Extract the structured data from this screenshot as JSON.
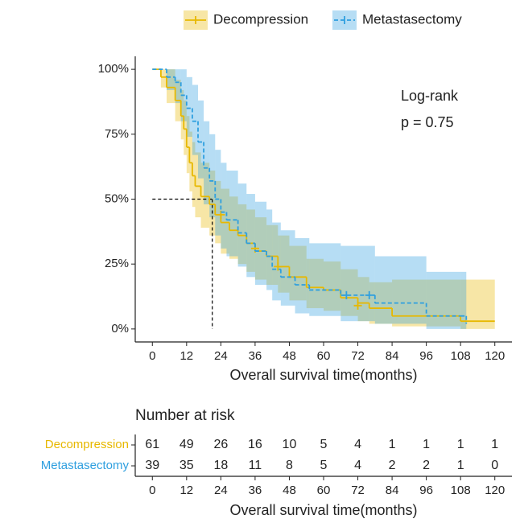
{
  "chart_data": {
    "type": "survival",
    "legend_position": "top",
    "xlabel": "Overall survival time(months)",
    "xlim": [
      -6,
      126
    ],
    "xticks": [
      0,
      12,
      24,
      36,
      48,
      60,
      72,
      84,
      96,
      108,
      120
    ],
    "ylim": [
      -5,
      105
    ],
    "yticks": [
      {
        "value": 0,
        "label": "0%"
      },
      {
        "value": 25,
        "label": "25%"
      },
      {
        "value": 50,
        "label": "50%"
      },
      {
        "value": 75,
        "label": "75%"
      },
      {
        "value": 100,
        "label": "100%"
      }
    ],
    "annotation": [
      "Log-rank",
      "p = 0.75"
    ],
    "median": {
      "x": 21,
      "y": 50
    },
    "series": [
      {
        "name": "Decompression",
        "color": "#E7B800",
        "dash": false,
        "time": [
          0,
          3,
          5,
          8,
          10,
          11,
          12,
          13,
          14,
          15,
          17,
          20,
          22,
          24,
          27,
          30,
          33,
          36,
          40,
          44,
          48,
          54,
          60,
          66,
          72,
          76,
          84,
          96,
          108,
          120
        ],
        "values": [
          100,
          97,
          93,
          88,
          82,
          77,
          70,
          64,
          59,
          55,
          51,
          48,
          44,
          41,
          38,
          36,
          33,
          30,
          28,
          24,
          20,
          16,
          15,
          12,
          10,
          8,
          5,
          5,
          3,
          3
        ],
        "upper": [
          100,
          100,
          100,
          96,
          92,
          88,
          82,
          76,
          72,
          68,
          64,
          61,
          57,
          54,
          51,
          48,
          46,
          43,
          40,
          36,
          32,
          27,
          26,
          23,
          20,
          18,
          19,
          19,
          19,
          19
        ],
        "lower": [
          100,
          93,
          87,
          80,
          73,
          67,
          60,
          53,
          47,
          43,
          39,
          36,
          33,
          29,
          27,
          25,
          22,
          19,
          17,
          14,
          11,
          8,
          7,
          5,
          3,
          2,
          1,
          1,
          0,
          0
        ],
        "censor_x": [
          24,
          36,
          44,
          72
        ],
        "censor_y": [
          44,
          31,
          24,
          9
        ]
      },
      {
        "name": "Metastasectomy",
        "color": "#2E9FDF",
        "dash": true,
        "time": [
          0,
          5,
          8,
          10,
          12,
          14,
          16,
          18,
          20,
          22,
          24,
          26,
          30,
          33,
          36,
          40,
          42,
          45,
          50,
          55,
          66,
          78,
          96,
          108,
          110
        ],
        "values": [
          100,
          97,
          95,
          90,
          85,
          80,
          72,
          62,
          57,
          50,
          45,
          42,
          37,
          33,
          30,
          28,
          23,
          20,
          17,
          15,
          13,
          10,
          5,
          5,
          2
        ],
        "upper": [
          100,
          100,
          100,
          100,
          97,
          94,
          88,
          80,
          75,
          69,
          64,
          61,
          56,
          52,
          49,
          46,
          41,
          38,
          35,
          33,
          32,
          28,
          22,
          22,
          22
        ],
        "lower": [
          100,
          92,
          87,
          80,
          74,
          67,
          58,
          48,
          43,
          36,
          31,
          28,
          24,
          20,
          17,
          15,
          11,
          9,
          6,
          5,
          3,
          2,
          0,
          0,
          0
        ],
        "censor_x": [
          68,
          76
        ],
        "censor_y": [
          13,
          13
        ]
      }
    ],
    "risk_table": {
      "title": "Number at risk",
      "xlabel": "Overall survival time(months)",
      "xticks": [
        0,
        12,
        24,
        36,
        48,
        60,
        72,
        84,
        96,
        108,
        120
      ],
      "rows": [
        {
          "name": "Decompression",
          "color": "#E7B800",
          "values": [
            61,
            49,
            26,
            16,
            10,
            5,
            4,
            1,
            1,
            1,
            1
          ]
        },
        {
          "name": "Metastasectomy",
          "color": "#2E9FDF",
          "values": [
            39,
            35,
            18,
            11,
            8,
            5,
            4,
            2,
            2,
            1,
            0
          ]
        }
      ]
    }
  }
}
